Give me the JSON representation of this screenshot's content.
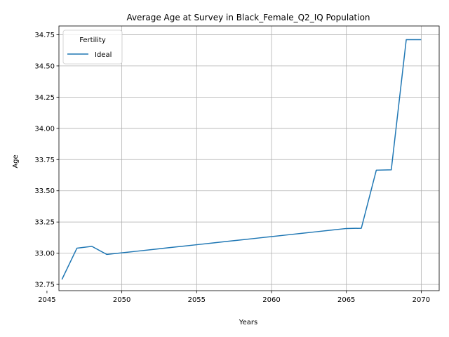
{
  "chart_data": {
    "type": "line",
    "title": "Average Age at Survey in Black_Female_Q2_IQ Population",
    "xlabel": "Years",
    "ylabel": "Age",
    "xlim": [
      2045.8,
      2071.2
    ],
    "ylim": [
      32.7,
      34.82
    ],
    "xticks": [
      2045,
      2050,
      2055,
      2060,
      2065,
      2070
    ],
    "yticks": [
      32.75,
      33.0,
      33.25,
      33.5,
      33.75,
      34.0,
      34.25,
      34.5,
      34.75
    ],
    "xtick_labels": [
      "2045",
      "2050",
      "2055",
      "2060",
      "2065",
      "2070"
    ],
    "ytick_labels": [
      "32.75",
      "33.00",
      "33.25",
      "33.50",
      "33.75",
      "34.00",
      "34.25",
      "34.50",
      "34.75"
    ],
    "grid": true,
    "legend": {
      "title": "Fertility",
      "placement": "upper-left"
    },
    "series": [
      {
        "name": "Ideal",
        "color": "#1f77b4",
        "x": [
          2046,
          2047,
          2048,
          2049,
          2050,
          2051,
          2052,
          2053,
          2054,
          2055,
          2056,
          2057,
          2058,
          2059,
          2060,
          2061,
          2062,
          2063,
          2064,
          2065,
          2066,
          2067,
          2068,
          2069,
          2070
        ],
        "y": [
          32.79,
          33.04,
          33.055,
          32.99,
          33.003,
          33.016,
          33.029,
          33.042,
          33.055,
          33.068,
          33.081,
          33.094,
          33.107,
          33.12,
          33.133,
          33.146,
          33.159,
          33.172,
          33.185,
          33.198,
          33.2,
          33.665,
          33.668,
          34.71,
          34.71
        ]
      }
    ]
  }
}
